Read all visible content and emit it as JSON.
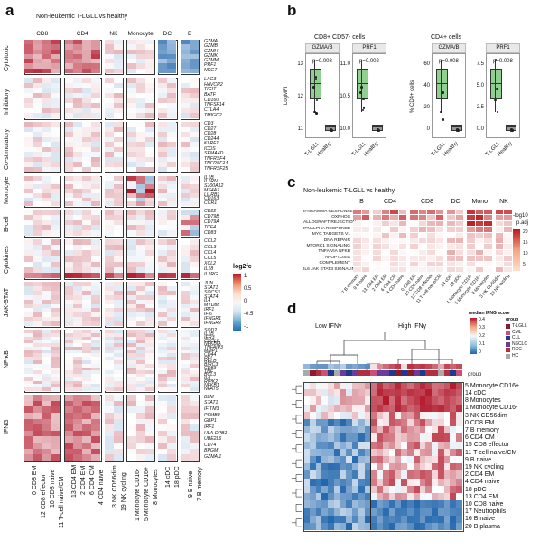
{
  "panel_a": {
    "label": "a",
    "title": "Non-leukemic T-LGLL vs healthy",
    "column_groups": [
      "CD8",
      "CD4",
      "NK",
      "Monocyte",
      "DC",
      "B"
    ],
    "row_groups": [
      {
        "name": "Cytotoxic",
        "genes": [
          "GZMA",
          "GZMB",
          "GZMH",
          "GZMK",
          "GZMM",
          "PRF1",
          "NKG7"
        ]
      },
      {
        "name": "Inhibitory",
        "genes": [
          "LAG3",
          "HAVCR2",
          "TIGIT",
          "BATF",
          "CD160",
          "TNFSF14",
          "CTLA4",
          "TMIGD2"
        ]
      },
      {
        "name": "Co-stimulatory",
        "genes": [
          "CD3",
          "CD27",
          "CD28",
          "CD244",
          "KLRF1",
          "ICOS",
          "SEMA4D",
          "TNFRSF4",
          "TNFRSF14",
          "TNFRSF25"
        ]
      },
      {
        "name": "Monocyte",
        "genes": [
          "IL1B",
          "IL1RN",
          "S100A12",
          "MS4A7",
          "LILRB1",
          "CD163",
          "CCR1"
        ]
      },
      {
        "name": "B-cell",
        "genes": [
          "CD22",
          "CD79B",
          "CD79A",
          "TCF4",
          "CD83"
        ]
      },
      {
        "name": "Cytokines",
        "genes": [
          "CCL2",
          "CCL3",
          "CCL4",
          "CCL5",
          "XCL2",
          "IL18",
          "IL2RG"
        ]
      },
      {
        "name": "JAK-STAT",
        "genes": [
          "JUN",
          "STAT1",
          "SOCS3",
          "STAT4",
          "IL4",
          "MYD88",
          "IRF1",
          "IFI6",
          "IFNGR1",
          "IFNGR2"
        ]
      },
      {
        "name": "NF-κB",
        "genes": [
          "SOD2",
          "IL1B",
          "IER3",
          "CXCL8",
          "NFKBIA",
          "TNFAIP3",
          "MMP1",
          "CD44",
          "REL",
          "RELB",
          "BIRC3",
          "CD83",
          "TNF",
          "BCL3",
          "IL6",
          "RIPK2",
          "NFKB1",
          "NFAT5"
        ]
      },
      {
        "name": "IFNG",
        "genes": [
          "B2M",
          "STAT1",
          "IFITM3",
          "PSMB8",
          "GBP1",
          "IRF1",
          "HLA-DPB1",
          "UBE2L6",
          "CD74",
          "BPGM",
          "GZMA.1"
        ]
      }
    ],
    "column_labels": [
      "0 CD8 EM",
      "12 CD8 effector",
      "10 CD8 naive",
      "11 T-cell naive/CM",
      "13 CD4 EM",
      "2 CD4 EM",
      "6 CD4 CM",
      "4 CD4 naive",
      "3 NK CD56dim",
      "19 NK cycling",
      "1 Monocyte CD16-",
      "5 Monocyte CD16+",
      "8 Monocytes",
      "14 cDC",
      "18 pDC",
      "9 B naive",
      "7 B memory"
    ],
    "legend": {
      "title": "log2fc",
      "ticks": [
        "1",
        "0.5",
        "0",
        "-0.5",
        "-1"
      ]
    }
  },
  "panel_b": {
    "label": "b",
    "group1_title": "CD8+ CD57- cells",
    "group2_title": "CD4+ cells",
    "plots": [
      {
        "strip": "GZMA/B",
        "p": "p=0.008",
        "ylabel": "LogMFI",
        "yticks": [
          "13",
          "12",
          "11"
        ]
      },
      {
        "strip": "PRF1",
        "p": "p=0.002",
        "ylabel": "",
        "yticks": [
          "11.0",
          "10.5",
          "10.0"
        ]
      },
      {
        "strip": "GZMA/B",
        "p": "p=0.008",
        "ylabel": "% CD4+ cells",
        "yticks": [
          "60",
          "40",
          "20",
          "0"
        ]
      },
      {
        "strip": "PRF1",
        "p": "p=0.008",
        "ylabel": "",
        "yticks": [
          "7.5",
          "5.0",
          "2.5",
          "0.0"
        ]
      }
    ],
    "xcats": [
      "T-LGLL",
      "Healthy"
    ]
  },
  "panel_c": {
    "label": "c",
    "title": "Non-leukemic T-LGLL vs healthy",
    "col_groups": [
      "B",
      "CD4",
      "CD8",
      "DC",
      "Mono",
      "NK"
    ],
    "pathways": [
      "IFNGAMMA RESPONSE",
      "OXPHOS",
      "ALLOGRAFT REJECTION",
      "IFNALPHA RESPONSE",
      "MYC TARGETS V1",
      "DNA REPAIR",
      "MTORC1 SIGNALING",
      "TNFA VIA NFKB",
      "APOPTOSIS",
      "COMPLEMENT",
      "IL6 JAK STAT3 SIGNALING"
    ],
    "columns": [
      "7 B memory",
      "9 B naive",
      "13 CD4 EM",
      "2 CD4 EM",
      "6 CD4 CM",
      "4 CD4 naive",
      "0 CD8 EM",
      "10 CD8 naive",
      "12 CD8 effector",
      "11 T-cell naive/CM",
      "14 cDC",
      "18 pDC",
      "1 Monocyte CD16-",
      "5 Monocyte CD16+",
      "8 Monocytes",
      "3 NK CD56dim",
      "19 NK cycling"
    ],
    "legend": {
      "title1": "-log10",
      "title2": "p.adj",
      "ticks": [
        "20",
        "15",
        "10",
        "5"
      ]
    }
  },
  "panel_d": {
    "label": "d",
    "low_label": "Low IFNγ",
    "high_label": "High IFNγ",
    "group_label": "group",
    "legend_title1": "median IFNG score",
    "legend_title2": "group",
    "score_ticks": [
      "0.4",
      "0.3",
      "0.2",
      "0.1",
      "0"
    ],
    "groups": [
      {
        "name": "T-LGLL",
        "color": "#8b1a2b"
      },
      {
        "name": "CML",
        "color": "#c9507a"
      },
      {
        "name": "CLL",
        "color": "#1f3a8a"
      },
      {
        "name": "NSCLC",
        "color": "#6a3d9a"
      },
      {
        "name": "RCC",
        "color": "#b03040"
      },
      {
        "name": "HC",
        "color": "#aaaaaa"
      }
    ],
    "rows": [
      "5 Monocyte CD16+",
      "14 cDC",
      "8 Monocytes",
      "1 Monocyte CD16-",
      "3 NK CD56dim",
      "0 CD8 EM",
      "7 B memory",
      "6 CD4 CM",
      "15 CD8 effector",
      "11 T-cell naive/CM",
      "9 B naive",
      "19 NK cycling",
      "2 CD4 EM",
      "4 CD4 naive",
      "18 pDC",
      "13 CD4 EM",
      "10 CD8 naive",
      "17 Neutrophils",
      "16 B naive",
      "20 B plasma"
    ]
  }
}
